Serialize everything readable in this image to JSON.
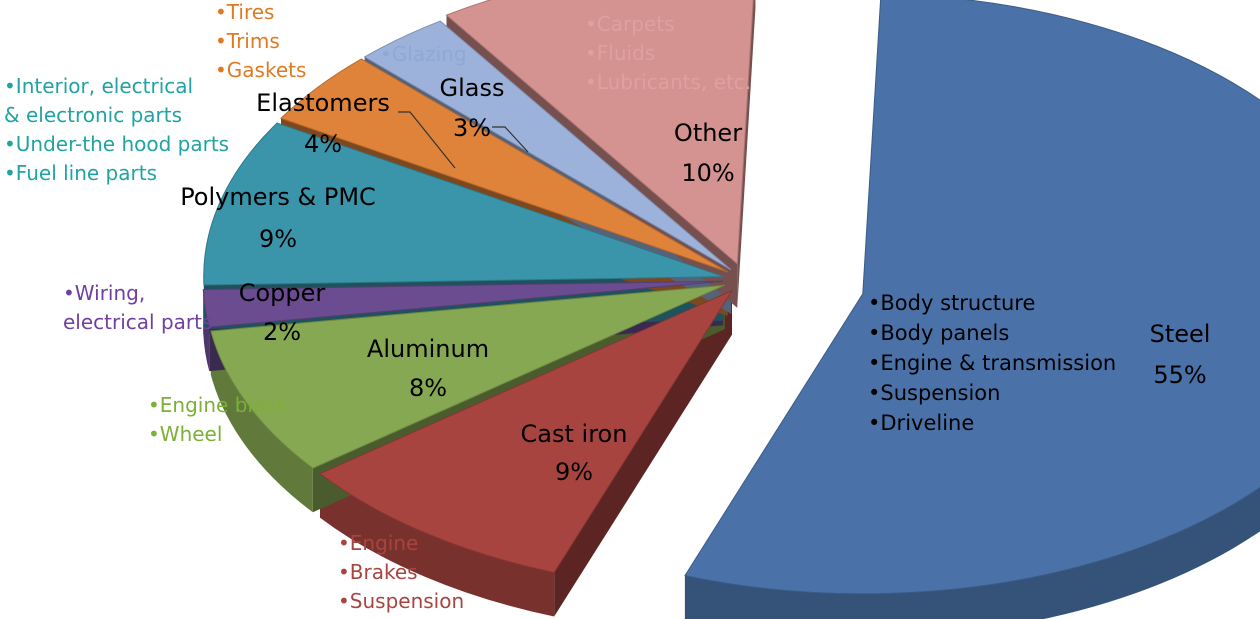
{
  "chart_data": {
    "type": "pie",
    "title": "",
    "slices": [
      {
        "label": "Steel",
        "value": 55,
        "value_label": "55%",
        "color": "#4A72A8",
        "uses": [
          "Body structure",
          "Body panels",
          "Engine & transmission",
          "Suspension",
          "Driveline"
        ]
      },
      {
        "label": "Cast iron",
        "value": 9,
        "value_label": "9%",
        "color": "#A84440",
        "uses": [
          "Engine",
          "Brakes",
          "Suspension"
        ],
        "uses_color": "#A84440"
      },
      {
        "label": "Aluminum",
        "value": 8,
        "value_label": "8%",
        "color": "#87A852",
        "uses": [
          "Engine block",
          "Wheel"
        ],
        "uses_color": "#7CB036"
      },
      {
        "label": "Copper",
        "value": 2,
        "value_label": "2%",
        "color": "#6C4C90",
        "uses": [
          "Wiring,",
          "electrical parts"
        ],
        "uses_color": "#7040A0"
      },
      {
        "label": "Polymers & PMC",
        "value": 9,
        "value_label": "9%",
        "color": "#3A95AA",
        "uses": [
          "Interior, electrical",
          "& electronic parts",
          "Under-the hood parts",
          "Fuel line parts"
        ],
        "uses_color": "#1FA3A3"
      },
      {
        "label": "Elastomers",
        "value": 4,
        "value_label": "4%",
        "color": "#E0833A",
        "uses": [
          "Tires",
          "Trims",
          "Gaskets"
        ],
        "uses_color": "#E07A20"
      },
      {
        "label": "Glass",
        "value": 3,
        "value_label": "3%",
        "color": "#9DB2DB",
        "uses": [
          "Glazing"
        ],
        "uses_color": "#8FA8D8"
      },
      {
        "label": "Other",
        "value": 10,
        "value_label": "10%",
        "color": "#D49290",
        "uses": [
          "Carpets",
          "Fluids",
          "Lubricants, etc."
        ],
        "uses_color": "#E0A0A0"
      }
    ]
  }
}
